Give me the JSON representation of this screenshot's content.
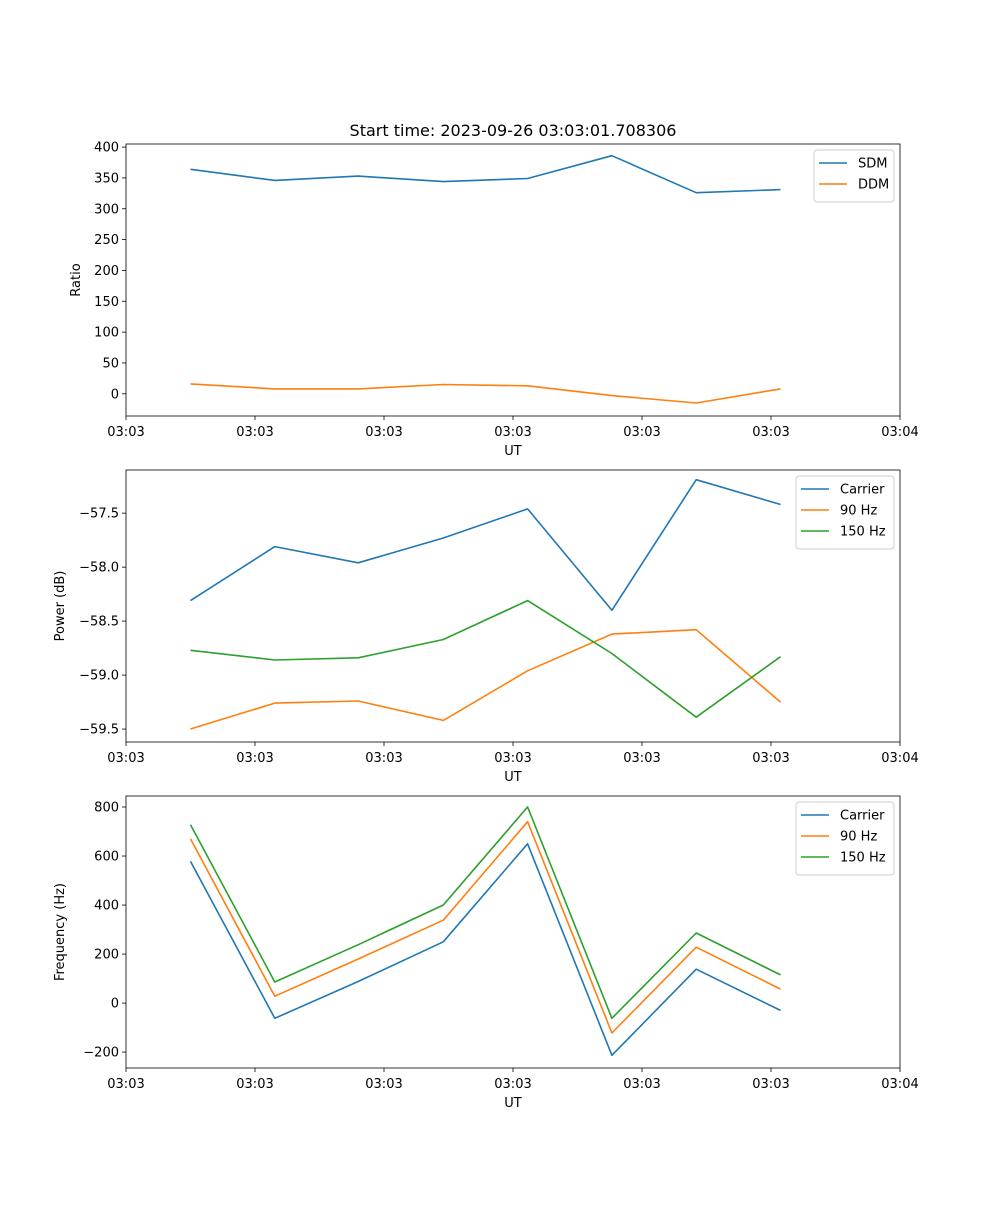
{
  "title": "Start time: 2023-09-26 03:03:01.708306",
  "chart_data": [
    {
      "type": "line",
      "xlabel": "UT",
      "ylabel": "Ratio",
      "xlim": [
        0,
        9
      ],
      "ylim": [
        -36,
        405
      ],
      "x_ticks": [
        0,
        1.5,
        3,
        4.5,
        6,
        7.5,
        9
      ],
      "x_tick_labels": [
        "03:03",
        "03:03",
        "03:03",
        "03:03",
        "03:03",
        "03:03",
        "03:04"
      ],
      "y_ticks": [
        0,
        50,
        100,
        150,
        200,
        250,
        300,
        350,
        400
      ],
      "y_tick_labels": [
        "0",
        "50",
        "100",
        "150",
        "200",
        "250",
        "300",
        "350",
        "400"
      ],
      "x": [
        0.75,
        1.73,
        2.7,
        3.69,
        4.67,
        5.65,
        6.63,
        7.61
      ],
      "legend_location": "upper right",
      "series": [
        {
          "name": "SDM",
          "color": "#1f77b4",
          "values": [
            364,
            346,
            353,
            344,
            349,
            386,
            326,
            331
          ]
        },
        {
          "name": "DDM",
          "color": "#ff7f0e",
          "values": [
            16,
            8,
            8,
            15,
            13,
            -3,
            -15,
            8
          ]
        }
      ]
    },
    {
      "type": "line",
      "xlabel": "UT",
      "ylabel": "Power (dB)",
      "xlim": [
        0,
        9
      ],
      "ylim": [
        -59.62,
        -57.1
      ],
      "x_ticks": [
        0,
        1.5,
        3,
        4.5,
        6,
        7.5,
        9
      ],
      "x_tick_labels": [
        "03:03",
        "03:03",
        "03:03",
        "03:03",
        "03:03",
        "03:03",
        "03:04"
      ],
      "y_ticks": [
        -59.5,
        -59.0,
        -58.5,
        -58.0,
        -57.5
      ],
      "y_tick_labels": [
        "−59.5",
        "−59.0",
        "−58.5",
        "−58.0",
        "−57.5"
      ],
      "x": [
        0.75,
        1.73,
        2.7,
        3.69,
        4.67,
        5.65,
        6.63,
        7.61
      ],
      "legend_location": "upper right",
      "series": [
        {
          "name": "Carrier",
          "color": "#1f77b4",
          "values": [
            -58.31,
            -57.81,
            -57.96,
            -57.73,
            -57.46,
            -58.4,
            -57.19,
            -57.42
          ]
        },
        {
          "name": "90 Hz",
          "color": "#ff7f0e",
          "values": [
            -59.5,
            -59.26,
            -59.24,
            -59.42,
            -58.96,
            -58.62,
            -58.58,
            -59.25
          ]
        },
        {
          "name": "150 Hz",
          "color": "#2ca02c",
          "values": [
            -58.77,
            -58.86,
            -58.84,
            -58.67,
            -58.31,
            -58.8,
            -59.39,
            -58.83
          ]
        }
      ]
    },
    {
      "type": "line",
      "xlabel": "UT",
      "ylabel": "Frequency (Hz)",
      "xlim": [
        0,
        9
      ],
      "ylim": [
        -265,
        845
      ],
      "x_ticks": [
        0,
        1.5,
        3,
        4.5,
        6,
        7.5,
        9
      ],
      "x_tick_labels": [
        "03:03",
        "03:03",
        "03:03",
        "03:03",
        "03:03",
        "03:03",
        "03:04"
      ],
      "y_ticks": [
        -200,
        0,
        200,
        400,
        600,
        800
      ],
      "y_tick_labels": [
        "−200",
        "0",
        "200",
        "400",
        "600",
        "800"
      ],
      "x": [
        0.75,
        1.73,
        2.7,
        3.69,
        4.67,
        5.65,
        6.63,
        7.61
      ],
      "legend_location": "upper right",
      "series": [
        {
          "name": "Carrier",
          "color": "#1f77b4",
          "values": [
            578,
            -62,
            88,
            250,
            650,
            -213,
            138,
            -30
          ]
        },
        {
          "name": "90 Hz",
          "color": "#ff7f0e",
          "values": [
            670,
            28,
            180,
            338,
            740,
            -122,
            228,
            57
          ]
        },
        {
          "name": "150 Hz",
          "color": "#2ca02c",
          "values": [
            728,
            86,
            238,
            400,
            800,
            -62,
            286,
            115
          ]
        }
      ]
    }
  ]
}
